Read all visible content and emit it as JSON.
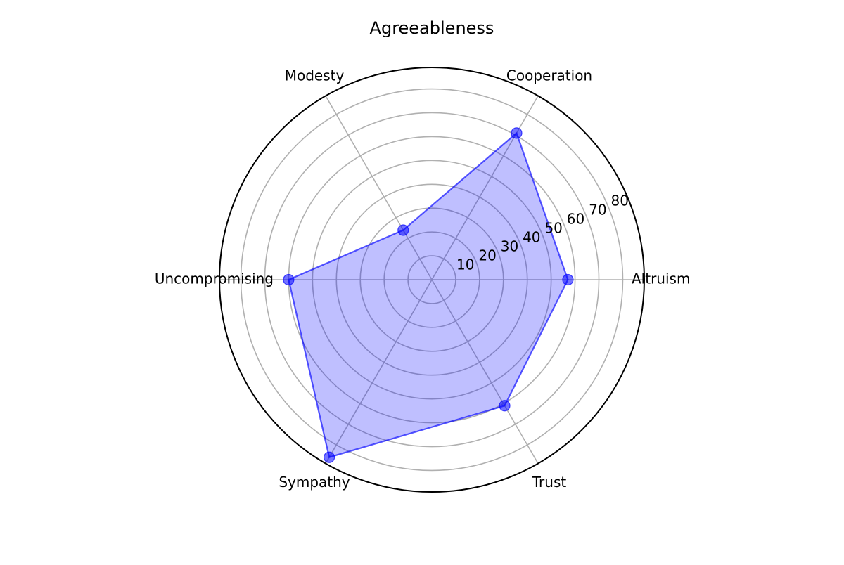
{
  "chart_data": {
    "type": "radar",
    "title": "Agreeableness",
    "categories": [
      "Altruism",
      "Cooperation",
      "Modesty",
      "Uncompromising",
      "Sympathy",
      "Trust"
    ],
    "series": [
      {
        "values": [
          57,
          71,
          24,
          60,
          86,
          61
        ],
        "color": "#0000ff",
        "fill_color": "#0000ff",
        "fill_opacity": 0.25
      }
    ],
    "radial_ticks": [
      10,
      20,
      30,
      40,
      50,
      60,
      70,
      80
    ],
    "rlim": [
      0,
      89
    ],
    "grid": true,
    "grid_color": "#b0b0b0",
    "spine_color": "#000000"
  }
}
